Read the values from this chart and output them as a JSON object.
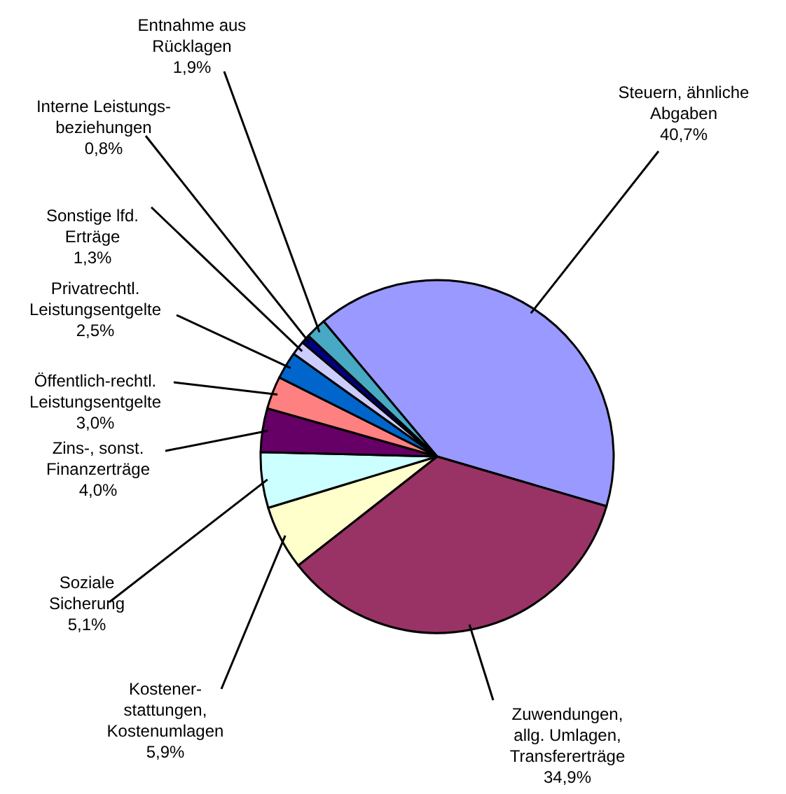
{
  "chart_data": {
    "type": "pie",
    "categories": [
      "Steuern, ähnliche\nAbgaben",
      "Zuwendungen,\nallg. Umlagen,\nTransfererträge",
      "Kostener-\nstattungen,\nKostenumlagen",
      "Soziale\nSicherung",
      "Zins-, sonst.\nFinanzerträge",
      "Öffentlich-rechtl.\nLeistungsentgelte",
      "Privatrechtl.\nLeistungsentgelte",
      "Sonstige lfd.\nErträge",
      "Interne Leistungs-\nbeziehungen",
      "Entnahme aus\nRücklagen"
    ],
    "values": [
      40.7,
      34.9,
      5.9,
      5.1,
      4.0,
      3.0,
      2.5,
      1.3,
      0.8,
      1.9
    ],
    "value_labels": [
      "40,7%",
      "34,9%",
      "5,9%",
      "5,1%",
      "4,0%",
      "3,0%",
      "2,5%",
      "1,3%",
      "0,8%",
      "1,9%"
    ],
    "colors": [
      "#9999ff",
      "#993366",
      "#ffffcc",
      "#ccffff",
      "#660066",
      "#ff8080",
      "#0066cc",
      "#ccccff",
      "#000080",
      "#47a9c3"
    ]
  }
}
